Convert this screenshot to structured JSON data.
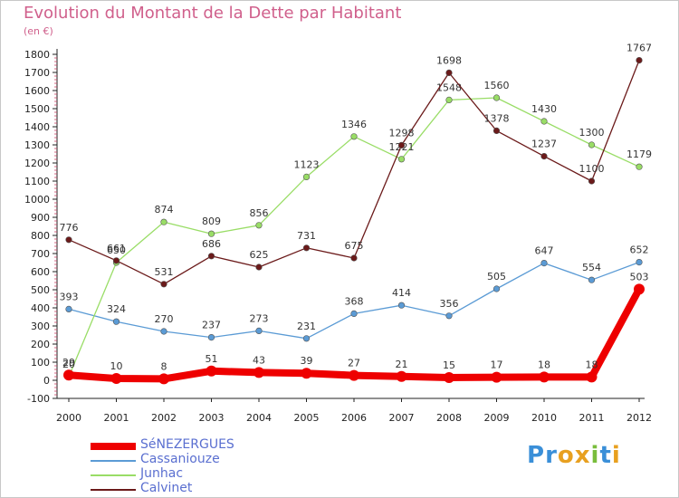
{
  "title": "Evolution du Montant de la Dette par Habitant",
  "subtitle": "(en €)",
  "logo_text": "Proxiti",
  "chart_data": {
    "type": "line",
    "title": "Evolution du Montant de la Dette par Habitant",
    "ylabel": "(en €)",
    "xlabel": "",
    "x": [
      2000,
      2001,
      2002,
      2003,
      2004,
      2005,
      2006,
      2007,
      2008,
      2009,
      2010,
      2011,
      2012
    ],
    "ylim": [
      -100,
      1800
    ],
    "yticks": [
      -100,
      0,
      100,
      200,
      300,
      400,
      500,
      600,
      700,
      800,
      900,
      1000,
      1100,
      1200,
      1300,
      1400,
      1500,
      1600,
      1700,
      1800
    ],
    "grid": false,
    "legend_position": "bottom-left",
    "series": [
      {
        "name": "Cassaniouze",
        "color": "#5b9bd5",
        "values": [
          393,
          324,
          270,
          237,
          273,
          231,
          368,
          414,
          356,
          505,
          647,
          554,
          652
        ]
      },
      {
        "name": "Junhac",
        "color": "#99dd66",
        "values": [
          20,
          650,
          874,
          809,
          856,
          1123,
          1346,
          1221,
          1548,
          1560,
          1430,
          1300,
          1179
        ]
      },
      {
        "name": "Calvinet",
        "color": "#6b1a1a",
        "values": [
          776,
          661,
          531,
          686,
          625,
          731,
          675,
          1298,
          1698,
          1378,
          1237,
          1100,
          1767
        ]
      },
      {
        "name": "SéNEZERGUES",
        "color": "#ee0000",
        "values": [
          29,
          10,
          8,
          51,
          43,
          39,
          27,
          21,
          15,
          17,
          18,
          18,
          503
        ]
      }
    ]
  }
}
